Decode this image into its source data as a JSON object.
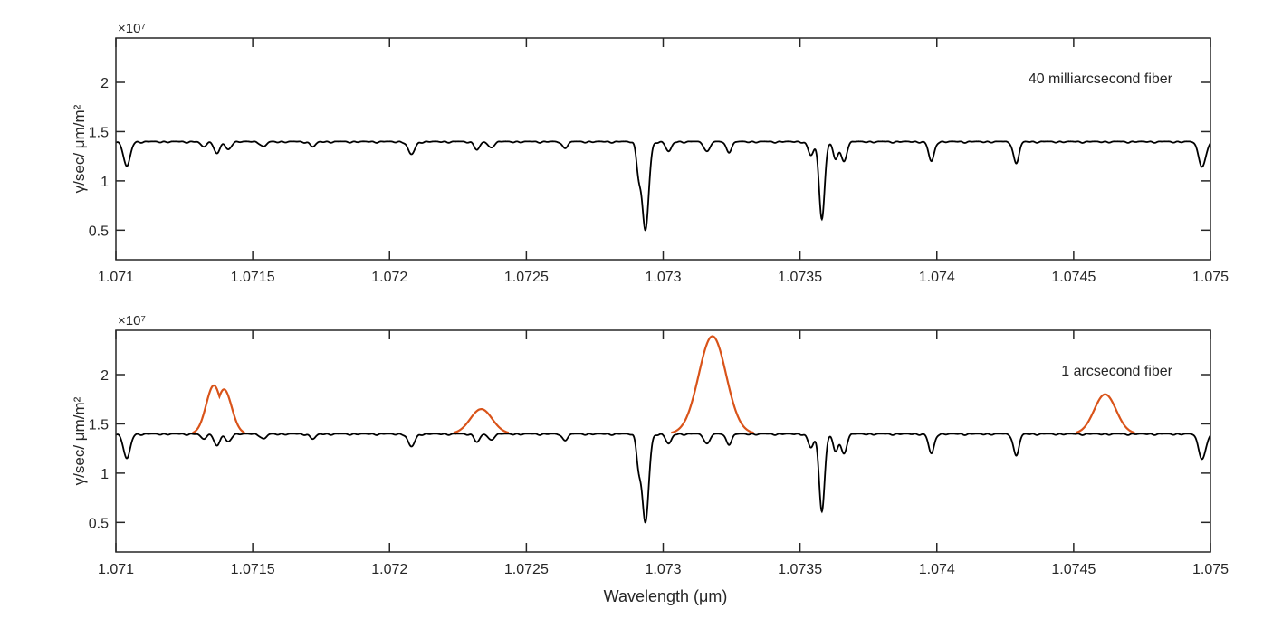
{
  "figure": {
    "xlabel": "Wavelength (μm)"
  },
  "colors": {
    "axis": "#262626",
    "spectrum": "#000000",
    "emission": "#d95319"
  },
  "chart_data": [
    {
      "type": "line",
      "annotation": "40 milliarcsecond fiber",
      "ylabel": "γ/sec/ μm/m²",
      "y_multiplier": "×10⁷",
      "xlim": [
        1.071,
        1.075
      ],
      "ylim": [
        0.2,
        2.45
      ],
      "xticks": [
        "1.071",
        "1.0715",
        "1.072",
        "1.0725",
        "1.073",
        "1.0735",
        "1.074",
        "1.0745",
        "1.075"
      ],
      "yticks": [
        0.5,
        1,
        1.5,
        2
      ],
      "ytick_labels": [
        "0.5",
        "1",
        "1.5",
        "2"
      ],
      "grid": false,
      "series": [
        {
          "color": "#000000",
          "continuum": 1.4,
          "absorption_lines": [
            {
              "x": 1.07104,
              "depth": 0.25,
              "width": 1.2e-05
            },
            {
              "x": 1.07132,
              "depth": 0.05,
              "width": 1e-05
            },
            {
              "x": 1.07137,
              "depth": 0.12,
              "width": 1e-05
            },
            {
              "x": 1.07141,
              "depth": 0.08,
              "width": 1e-05
            },
            {
              "x": 1.07154,
              "depth": 0.05,
              "width": 1e-05
            },
            {
              "x": 1.07172,
              "depth": 0.05,
              "width": 1e-05
            },
            {
              "x": 1.07208,
              "depth": 0.13,
              "width": 1.2e-05
            },
            {
              "x": 1.07232,
              "depth": 0.08,
              "width": 1e-05
            },
            {
              "x": 1.07237,
              "depth": 0.06,
              "width": 1e-05
            },
            {
              "x": 1.07264,
              "depth": 0.06,
              "width": 1e-05
            },
            {
              "x": 1.07291,
              "depth": 0.28,
              "width": 8e-06
            },
            {
              "x": 1.072935,
              "depth": 0.9,
              "width": 1.2e-05
            },
            {
              "x": 1.07302,
              "depth": 0.1,
              "width": 1e-05
            },
            {
              "x": 1.07316,
              "depth": 0.1,
              "width": 1e-05
            },
            {
              "x": 1.07324,
              "depth": 0.1,
              "width": 1e-05
            },
            {
              "x": 1.07354,
              "depth": 0.14,
              "width": 1e-05
            },
            {
              "x": 1.07358,
              "depth": 0.78,
              "width": 1e-05
            },
            {
              "x": 1.07363,
              "depth": 0.18,
              "width": 9e-06
            },
            {
              "x": 1.07366,
              "depth": 0.2,
              "width": 1e-05
            },
            {
              "x": 1.07398,
              "depth": 0.2,
              "width": 1e-05
            },
            {
              "x": 1.07429,
              "depth": 0.22,
              "width": 1e-05
            },
            {
              "x": 1.07497,
              "depth": 0.25,
              "width": 1.3e-05
            }
          ]
        }
      ]
    },
    {
      "type": "line",
      "annotation": "1 arcsecond fiber",
      "ylabel": "γ/sec/ μm/m²",
      "y_multiplier": "×10⁷",
      "xlim": [
        1.071,
        1.075
      ],
      "ylim": [
        0.2,
        2.45
      ],
      "xticks": [
        "1.071",
        "1.0715",
        "1.072",
        "1.0725",
        "1.073",
        "1.0735",
        "1.074",
        "1.0745",
        "1.075"
      ],
      "yticks": [
        0.5,
        1,
        1.5,
        2
      ],
      "ytick_labels": [
        "0.5",
        "1",
        "1.5",
        "2"
      ],
      "grid": false,
      "series": [
        {
          "color": "#d95319",
          "emission_peaks": [
            {
              "x": 1.071358,
              "height": 0.49,
              "width": 2.8e-05
            },
            {
              "x": 1.071395,
              "height": 0.45,
              "width": 2.8e-05
            },
            {
              "x": 1.072335,
              "height": 0.25,
              "width": 4e-05
            },
            {
              "x": 1.07318,
              "height": 0.99,
              "width": 5e-05
            },
            {
              "x": 1.074615,
              "height": 0.4,
              "width": 4e-05
            }
          ]
        },
        {
          "color": "#000000",
          "same_as_panel": 0
        }
      ]
    }
  ]
}
